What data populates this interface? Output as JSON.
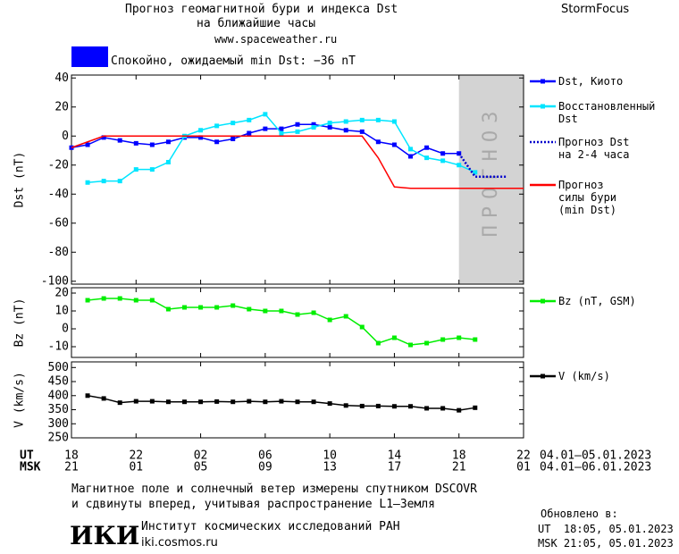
{
  "header": {
    "title_line1": "Прогноз геомагнитной бури и индекса Dst",
    "title_line2": "на ближайшие часы",
    "url": "www.spaceweather.ru",
    "brand": "StormFocus"
  },
  "status": {
    "text": "Спокойно, ожидаемый min Dst: −36 nT",
    "color": "#0000ff"
  },
  "chart_data": [
    {
      "type": "line",
      "ylabel": "Dst (nT)",
      "xlim": [
        0,
        28
      ],
      "ylim": [
        -102,
        42
      ],
      "yticks": [
        40,
        20,
        0,
        -20,
        -40,
        -60,
        -80,
        -100
      ],
      "forecast_region": [
        24,
        28
      ],
      "forecast_label": "ПРОГНОЗ",
      "forecast_color": "#d3d3d3",
      "series": [
        {
          "name": "Dst, Киото",
          "color": "#0000ff",
          "marker": true,
          "style": "solid",
          "x": [
            0,
            1,
            2,
            3,
            4,
            5,
            6,
            7,
            8,
            9,
            10,
            11,
            12,
            13,
            14,
            15,
            16,
            17,
            18,
            19,
            20,
            21,
            22,
            23,
            24
          ],
          "values": [
            -8,
            -6,
            -1,
            -3,
            -5,
            -6,
            -4,
            -1,
            -1,
            -4,
            -2,
            2,
            5,
            5,
            8,
            8,
            6,
            4,
            3,
            -4,
            -6,
            -14,
            -8,
            -12,
            -12
          ]
        },
        {
          "name": "Восстановленный\nDst",
          "color": "#00e5ff",
          "marker": true,
          "style": "solid",
          "x": [
            1,
            2,
            3,
            4,
            5,
            6,
            7,
            8,
            9,
            10,
            11,
            12,
            13,
            14,
            15,
            16,
            17,
            18,
            19,
            20,
            21,
            22,
            23,
            24,
            25
          ],
          "values": [
            -32,
            -31,
            -31,
            -23,
            -23,
            -18,
            0,
            4,
            7,
            9,
            11,
            15,
            2,
            3,
            6,
            9,
            10,
            11,
            11,
            10,
            -9,
            -15,
            -17,
            -20,
            -25
          ]
        },
        {
          "name": "Прогноз Dst\nна 2-4 часа",
          "color": "#0000cc",
          "marker": false,
          "style": "dotted",
          "x": [
            24,
            25,
            26,
            27
          ],
          "values": [
            -12,
            -28,
            -28,
            -28
          ]
        },
        {
          "name": "Прогноз\nсилы бури\n(min Dst)",
          "color": "#ff0000",
          "marker": false,
          "style": "solid",
          "x": [
            0,
            2,
            18,
            19,
            20,
            21,
            28
          ],
          "values": [
            -8,
            0,
            0,
            -15,
            -35,
            -36,
            -36
          ]
        }
      ]
    },
    {
      "type": "line",
      "ylabel": "Bz (nT)",
      "xlim": [
        0,
        28
      ],
      "ylim": [
        -16,
        23
      ],
      "yticks": [
        20,
        10,
        0,
        -10
      ],
      "series": [
        {
          "name": "Bz (nT, GSM)",
          "color": "#00ee00",
          "marker": true,
          "style": "solid",
          "x": [
            1,
            2,
            3,
            4,
            5,
            6,
            7,
            8,
            9,
            10,
            11,
            12,
            13,
            14,
            15,
            16,
            17,
            18,
            19,
            20,
            21,
            22,
            23,
            24,
            25
          ],
          "values": [
            16,
            17,
            17,
            16,
            16,
            11,
            12,
            12,
            12,
            13,
            11,
            10,
            10,
            8,
            9,
            5,
            7,
            1,
            -8,
            -5,
            -9,
            -8,
            -6,
            -5,
            -6
          ]
        }
      ]
    },
    {
      "type": "line",
      "ylabel": "V (km/s)",
      "xlim": [
        0,
        28
      ],
      "ylim": [
        250,
        520
      ],
      "yticks": [
        500,
        450,
        400,
        350,
        300,
        250
      ],
      "xticks": [
        {
          "value": 0,
          "label": "18"
        },
        {
          "value": 4,
          "label": "22"
        },
        {
          "value": 8,
          "label": "02"
        },
        {
          "value": 12,
          "label": "06"
        },
        {
          "value": 16,
          "label": "10"
        },
        {
          "value": 20,
          "label": "14"
        },
        {
          "value": 24,
          "label": "18"
        },
        {
          "value": 28,
          "label": "22"
        }
      ],
      "x2ticks": [
        {
          "value": 0,
          "label": "21"
        },
        {
          "value": 4,
          "label": "01"
        },
        {
          "value": 8,
          "label": "05"
        },
        {
          "value": 12,
          "label": "09"
        },
        {
          "value": 16,
          "label": "13"
        },
        {
          "value": 20,
          "label": "17"
        },
        {
          "value": 24,
          "label": "21"
        },
        {
          "value": 28,
          "label": "01"
        }
      ],
      "xaxis_name": "UT",
      "x2axis_name": "MSK",
      "xaxis_range": "04.01–05.01.2023",
      "x2axis_range": "04.01–06.01.2023",
      "series": [
        {
          "name": "V (km/s)",
          "color": "#000000",
          "marker": true,
          "style": "solid",
          "x": [
            1,
            2,
            3,
            4,
            5,
            6,
            7,
            8,
            9,
            10,
            11,
            12,
            13,
            14,
            15,
            16,
            17,
            18,
            19,
            20,
            21,
            22,
            23,
            24,
            25
          ],
          "values": [
            400,
            390,
            375,
            380,
            380,
            378,
            378,
            378,
            379,
            378,
            380,
            378,
            380,
            378,
            378,
            372,
            365,
            363,
            363,
            362,
            362,
            355,
            355,
            348,
            357
          ]
        }
      ]
    }
  ],
  "footer": {
    "note_line1": "Магнитное поле и солнечный ветер измерены спутником DSCOVR",
    "note_line2": "и сдвинуты вперед, учитывая распространение L1–Земля",
    "logo": "ИКИ",
    "institute": "Институт космических исследований РАН",
    "site": "iki.cosmos.ru",
    "updated_label": "Обновлено в:",
    "updated_ut": "UT  18:05, 05.01.2023",
    "updated_msk": "MSK 21:05, 05.01.2023"
  }
}
